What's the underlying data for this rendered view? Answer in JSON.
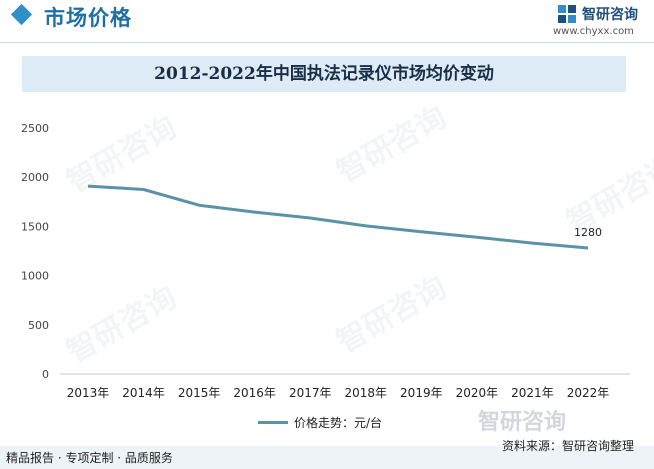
{
  "header": {
    "section_title": "市场价格",
    "logo_text": "智研咨询",
    "site": "www.chyxx.com"
  },
  "chart_data": {
    "type": "line",
    "title": "2012-2022年中国执法记录仪市场均价变动",
    "categories": [
      "2013年",
      "2014年",
      "2015年",
      "2016年",
      "2017年",
      "2018年",
      "2019年",
      "2020年",
      "2021年",
      "2022年"
    ],
    "series": [
      {
        "name": "价格走势：元/台",
        "values": [
          1910,
          1875,
          1715,
          1645,
          1585,
          1505,
          1445,
          1390,
          1330,
          1280
        ]
      }
    ],
    "data_labels": [
      {
        "index": 9,
        "text": "1280"
      }
    ],
    "ylim": [
      0,
      2500
    ],
    "yticks": [
      0,
      500,
      1000,
      1500,
      2000,
      2500
    ],
    "grid": false,
    "legend_position": "bottom-center",
    "line_color": "#5b92a8"
  },
  "watermark": "智研咨询",
  "footer": {
    "left": "精品报告 · 专项定制 · 品质服务",
    "source": "资料来源：智研咨询整理"
  }
}
